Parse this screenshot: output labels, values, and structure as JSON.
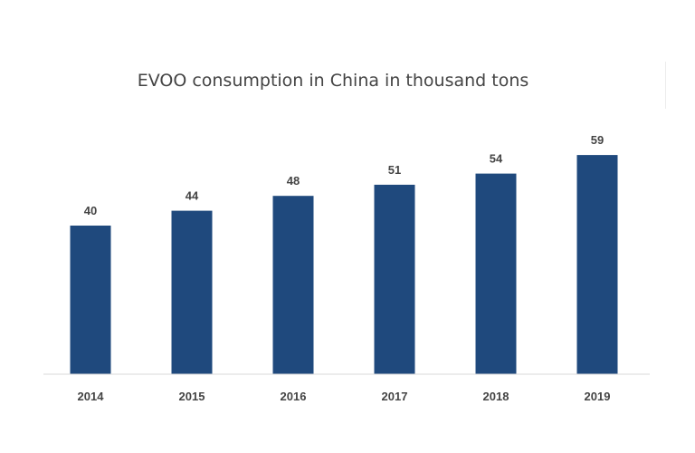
{
  "chart_data": {
    "type": "bar",
    "title": "EVOO consumption in China in thousand tons",
    "xlabel": "",
    "ylabel": "",
    "categories": [
      "2014",
      "2015",
      "2016",
      "2017",
      "2018",
      "2019"
    ],
    "values": [
      40,
      44,
      48,
      51,
      54,
      59
    ],
    "ylim": [
      0,
      66
    ],
    "grid": false,
    "legend": "none",
    "bar_color": "#1f497d",
    "axis_color": "#d9d9d9",
    "text_color": "#444444"
  }
}
